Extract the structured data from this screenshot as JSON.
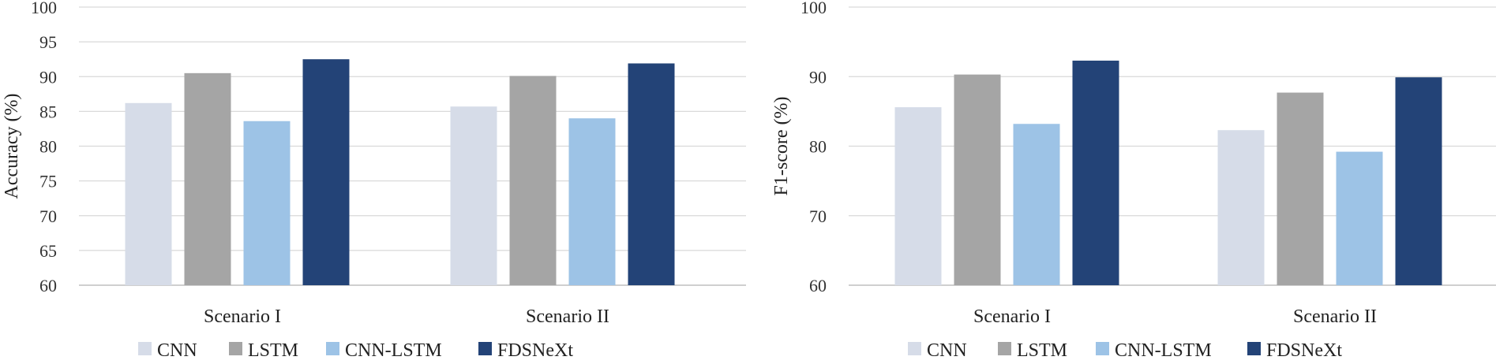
{
  "chart_data": [
    {
      "type": "bar",
      "categories": [
        "Scenario I",
        "Scenario II"
      ],
      "series": [
        {
          "name": "CNN",
          "values": [
            86.2,
            85.7
          ],
          "color": "#d6dce8"
        },
        {
          "name": "LSTM",
          "values": [
            90.5,
            90.1
          ],
          "color": "#a5a5a5"
        },
        {
          "name": "CNN-LSTM",
          "values": [
            83.6,
            84.0
          ],
          "color": "#9dc3e6"
        },
        {
          "name": "FDSNeXt",
          "values": [
            92.5,
            91.9
          ],
          "color": "#234377"
        }
      ],
      "ylabel": "Accuracy (%)",
      "xlabel": "",
      "ylim": [
        60,
        100
      ],
      "yticks": [
        60,
        65,
        70,
        75,
        80,
        85,
        90,
        95,
        100
      ],
      "grid": true,
      "legend": "bottom"
    },
    {
      "type": "bar",
      "categories": [
        "Scenario I",
        "Scenario II"
      ],
      "series": [
        {
          "name": "CNN",
          "values": [
            85.6,
            82.3
          ],
          "color": "#d6dce8"
        },
        {
          "name": "LSTM",
          "values": [
            90.3,
            87.7
          ],
          "color": "#a5a5a5"
        },
        {
          "name": "CNN-LSTM",
          "values": [
            83.2,
            79.2
          ],
          "color": "#9dc3e6"
        },
        {
          "name": "FDSNeXt",
          "values": [
            92.3,
            89.9
          ],
          "color": "#234377"
        }
      ],
      "ylabel": "F1-score (%)",
      "xlabel": "",
      "ylim": [
        60,
        100
      ],
      "yticks": [
        60,
        70,
        80,
        90,
        100
      ],
      "grid": true,
      "legend": "bottom"
    }
  ]
}
